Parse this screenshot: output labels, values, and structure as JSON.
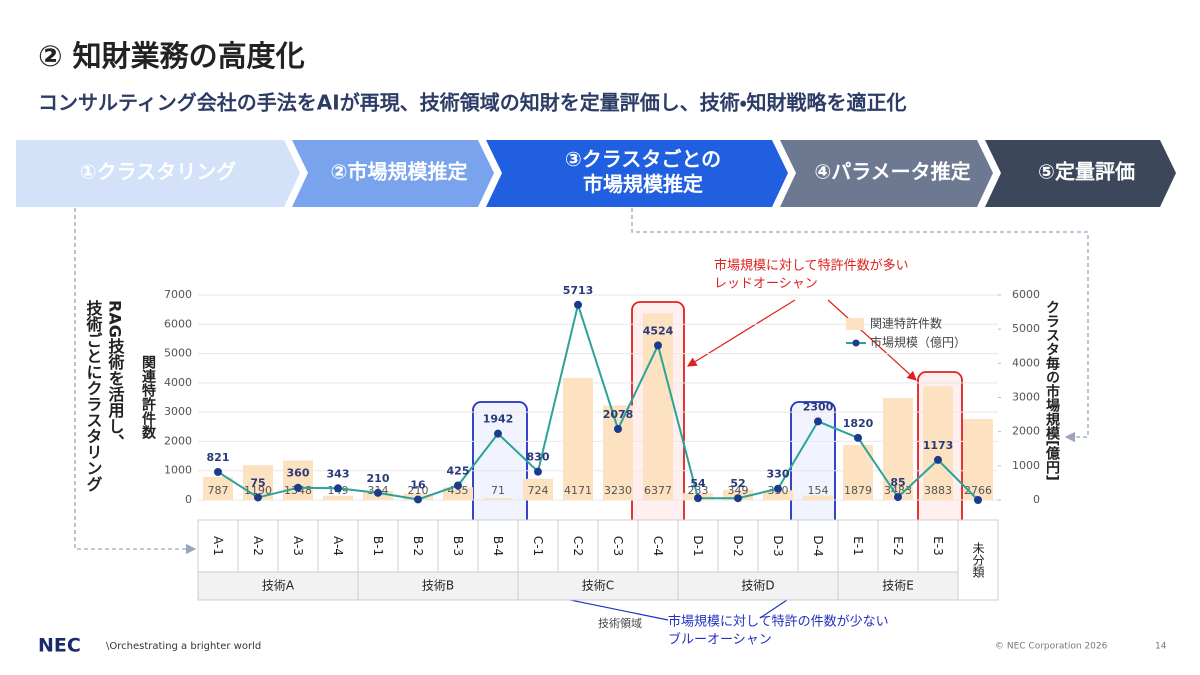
{
  "title": "② 知財業務の高度化",
  "subtitle": "コンサルティング会社の手法をAIが再現、技術領域の知財を定量評価し、技術・知財戦略を適正化",
  "steps": [
    {
      "lines": [
        "①クラスタリング"
      ],
      "color": "#d3e2f8"
    },
    {
      "lines": [
        "②市場規模推定"
      ],
      "color": "#7aa3ee"
    },
    {
      "lines": [
        "③クラスタごとの",
        "市場規模推定"
      ],
      "color": "#1f5fe0"
    },
    {
      "lines": [
        "④パラメータ推定"
      ],
      "color": "#6d7891"
    },
    {
      "lines": [
        "⑤定量評価"
      ],
      "color": "#3d475b"
    }
  ],
  "left_note": [
    "RAG技術を活用し、",
    "技術ごとにクラスタリング"
  ],
  "red_note": [
    "市場規模に対して特許件数が多い",
    "レッドオーシャン"
  ],
  "blue_note": [
    "市場規模に対して特許の件数が少ない",
    "ブルーオーシャン"
  ],
  "chart_data": {
    "type": "bar-line",
    "x_label": "技術領域",
    "y_label": "関連特許件数",
    "y2_label": "クラスタ毎の市場規模[億円]",
    "categories": [
      "A-1",
      "A-2",
      "A-3",
      "A-4",
      "B-1",
      "B-2",
      "B-3",
      "B-4",
      "C-1",
      "C-2",
      "C-3",
      "C-4",
      "D-1",
      "D-2",
      "D-3",
      "D-4",
      "E-1",
      "E-2",
      "E-3",
      "未分類"
    ],
    "category_groups": [
      {
        "name": "技術A",
        "size": 4
      },
      {
        "name": "技術B",
        "size": 4
      },
      {
        "name": "技術C",
        "size": 4
      },
      {
        "name": "技術D",
        "size": 4
      },
      {
        "name": "技術E",
        "size": 3
      }
    ],
    "series": [
      {
        "name": "関連特許件数",
        "type": "bar",
        "color": "#fde2c2",
        "values": [
          787,
          1190,
          1348,
          149,
          314,
          210,
          435,
          71,
          724,
          4171,
          3230,
          6377,
          233,
          349,
          330,
          154,
          1879,
          3483,
          3883,
          2766
        ]
      },
      {
        "name": "市場規模（億円）",
        "type": "line",
        "axis": "y2",
        "color": "#2aa39a",
        "marker_color": "#1b3b8c",
        "values": [
          821,
          75,
          360,
          343,
          210,
          16,
          425,
          1942,
          830,
          5713,
          2078,
          4524,
          54,
          52,
          330,
          2300,
          1820,
          85,
          1173,
          0
        ],
        "value_labels": [
          "821",
          "75",
          "360",
          "343",
          "210",
          "16",
          "425",
          "1942",
          "830",
          "5713",
          "2078",
          "4524",
          "54",
          "52",
          "330",
          "2300",
          "1820",
          "85",
          "1173",
          null
        ]
      }
    ],
    "ylim": [
      0,
      7000
    ],
    "yticks": [
      0,
      1000,
      2000,
      3000,
      4000,
      5000,
      6000,
      7000
    ],
    "y2lim": [
      0,
      6000
    ],
    "y2ticks": [
      0,
      1000,
      2000,
      3000,
      4000,
      5000,
      6000
    ],
    "grid": true,
    "legend": "upper right"
  },
  "footer": {
    "logo": "NEC",
    "tagline": "\\Orchestrating a brighter world",
    "copyright": "© NEC Corporation 2026",
    "page": "14"
  }
}
